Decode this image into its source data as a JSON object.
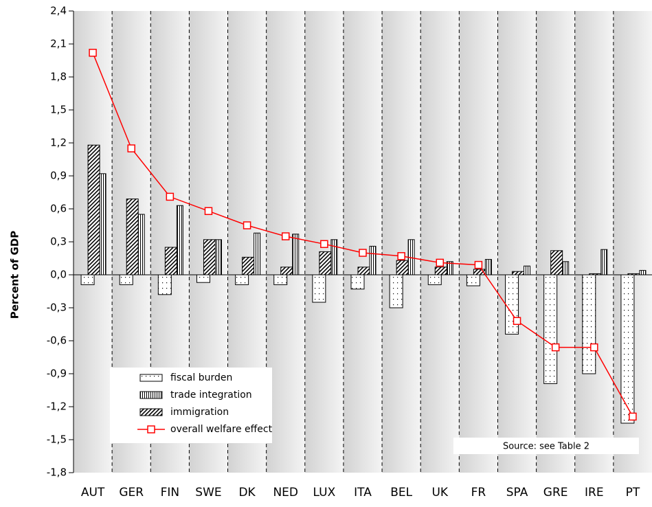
{
  "chart_data": {
    "type": "bar_line",
    "y_label": "Percent of GDP",
    "source": "Source: see Table 2",
    "categories": [
      "AUT",
      "GER",
      "FIN",
      "SWE",
      "DK",
      "NED",
      "LUX",
      "ITA",
      "BEL",
      "UK",
      "FR",
      "SPA",
      "GRE",
      "IRE",
      "PT"
    ],
    "series": [
      {
        "name": "fiscal burden",
        "type": "bar",
        "pattern": "dots",
        "color": "#000000",
        "values": [
          -0.09,
          -0.09,
          -0.18,
          -0.07,
          -0.09,
          -0.09,
          -0.25,
          -0.13,
          -0.3,
          -0.09,
          -0.1,
          -0.54,
          -0.99,
          -0.9,
          -1.35
        ]
      },
      {
        "name": "trade integration",
        "type": "bar",
        "pattern": "vlines",
        "color": "#000000",
        "values": [
          0.92,
          0.55,
          0.63,
          0.32,
          0.38,
          0.37,
          0.32,
          0.26,
          0.32,
          0.12,
          0.14,
          0.08,
          0.12,
          0.23,
          0.04
        ]
      },
      {
        "name": "immigration",
        "type": "bar",
        "pattern": "diag",
        "color": "#000000",
        "values": [
          1.18,
          0.69,
          0.25,
          0.32,
          0.16,
          0.07,
          0.21,
          0.07,
          0.13,
          0.07,
          0.05,
          0.03,
          0.22,
          0.01,
          0.01
        ]
      },
      {
        "name": "overall welfare effect",
        "type": "line",
        "color": "#ff0000",
        "values": [
          2.02,
          1.15,
          0.71,
          0.58,
          0.45,
          0.35,
          0.28,
          0.2,
          0.17,
          0.11,
          0.09,
          -0.42,
          -0.66,
          -0.66,
          -1.29
        ]
      }
    ],
    "ylim": [
      -1.8,
      2.4
    ],
    "yticks": [
      {
        "value": -1.8,
        "label": "-1,8"
      },
      {
        "value": -1.5,
        "label": "-1,5"
      },
      {
        "value": -1.2,
        "label": "-1,2"
      },
      {
        "value": -0.9,
        "label": "-0,9"
      },
      {
        "value": -0.6,
        "label": "-0,6"
      },
      {
        "value": -0.3,
        "label": "-0,3"
      },
      {
        "value": 0,
        "label": "0,0"
      },
      {
        "value": 0.3,
        "label": "0,3"
      },
      {
        "value": 0.6,
        "label": "0,6"
      },
      {
        "value": 0.9,
        "label": "0,9"
      },
      {
        "value": 1.2,
        "label": "1,2"
      },
      {
        "value": 1.5,
        "label": "1,5"
      },
      {
        "value": 1.8,
        "label": "1,8"
      },
      {
        "value": 2.1,
        "label": "2,1"
      },
      {
        "value": 2.4,
        "label": "2,4"
      }
    ],
    "legend": "lower left"
  }
}
